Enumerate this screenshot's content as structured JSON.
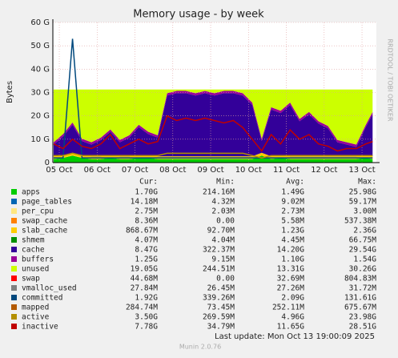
{
  "chart_data": {
    "type": "stacked-area",
    "title": "Memory usage - by week",
    "y_label": "Bytes",
    "side_note": "RRDTOOL / TOBI OETIKER",
    "footer": "Last update: Mon Oct 13 19:00:09 2025",
    "version": "Munin 2.0.76",
    "stats_header": [
      "Cur:",
      "Min:",
      "Avg:",
      "Max:"
    ],
    "grid": true,
    "ylim": [
      0,
      60
    ],
    "yticks": [
      0,
      {
        "value": 10,
        "label": "10 G"
      },
      {
        "value": 20,
        "label": "20 G"
      },
      {
        "value": 30,
        "label": "30 G"
      },
      {
        "value": 40,
        "label": "40 G"
      },
      {
        "value": 50,
        "label": "50 G"
      },
      {
        "value": 60,
        "label": "60 G"
      }
    ],
    "xlim": [
      -0.17,
      8.38
    ],
    "xticks": [
      {
        "value": 0,
        "label": "05 Oct"
      },
      {
        "value": 1,
        "label": "06 Oct"
      },
      {
        "value": 2,
        "label": "07 Oct"
      },
      {
        "value": 3,
        "label": "08 Oct"
      },
      {
        "value": 4,
        "label": "09 Oct"
      },
      {
        "value": 5,
        "label": "10 Oct"
      },
      {
        "value": 6,
        "label": "11 Oct"
      },
      {
        "value": 7,
        "label": "12 Oct"
      },
      {
        "value": 8,
        "label": "13 Oct"
      }
    ],
    "x": [
      -0.15,
      0.1,
      0.35,
      0.6,
      0.85,
      1.1,
      1.35,
      1.6,
      1.85,
      2.1,
      2.35,
      2.6,
      2.85,
      3.1,
      3.35,
      3.6,
      3.85,
      4.1,
      4.35,
      4.6,
      4.85,
      5.1,
      5.35,
      5.6,
      5.85,
      6.1,
      6.35,
      6.6,
      6.85,
      7.1,
      7.35,
      7.6,
      7.85,
      8.1,
      8.28
    ],
    "series": [
      {
        "name": "apps",
        "color": "#00cc00",
        "kind": "area",
        "stats": [
          "1.70G",
          "214.16M",
          "1.49G",
          "25.98G"
        ],
        "values": [
          1.5,
          2,
          3,
          2,
          1.5,
          1.5,
          2,
          1.5,
          1.5,
          2,
          2,
          1.5,
          1.5,
          1.5,
          1.5,
          1.5,
          1.5,
          1.5,
          1.5,
          1.5,
          1.5,
          1.5,
          3,
          1.5,
          2,
          1.5,
          1.5,
          1.5,
          1.5,
          1.5,
          1.5,
          1.5,
          1.5,
          2,
          1.5
        ]
      },
      {
        "name": "page_tables",
        "color": "#0066b3",
        "stats": [
          "14.18M",
          "4.32M",
          "9.02M",
          "59.17M"
        ]
      },
      {
        "name": "per_cpu",
        "color": "#ffe680",
        "stats": [
          "2.75M",
          "2.03M",
          "2.73M",
          "3.00M"
        ]
      },
      {
        "name": "swap_cache",
        "color": "#ff8000",
        "stats": [
          "8.36M",
          "0.00",
          "5.58M",
          "537.38M"
        ]
      },
      {
        "name": "slab_cache",
        "color": "#ffcc00",
        "kind": "area",
        "stats": [
          "868.67M",
          "92.70M",
          "1.23G",
          "2.36G"
        ],
        "values": [
          1.2,
          1.2,
          1.2,
          1.2,
          1.2,
          1.2,
          1.2,
          1.2,
          1.2,
          1.2,
          1.2,
          1.2,
          1.2,
          1.2,
          1.2,
          1.2,
          1.2,
          1.2,
          1.2,
          1.2,
          1.2,
          1.2,
          1.2,
          1.2,
          1.2,
          1.2,
          1.2,
          1.2,
          1.2,
          1.2,
          1.2,
          1.2,
          1.2,
          1.2,
          1.2
        ]
      },
      {
        "name": "shmem",
        "color": "#008f00",
        "stats": [
          "4.07M",
          "4.04M",
          "4.45M",
          "66.75M"
        ]
      },
      {
        "name": "cache",
        "color": "#330099",
        "kind": "area",
        "stats": [
          "8.47G",
          "322.37M",
          "14.20G",
          "29.54G"
        ],
        "values": [
          5,
          8,
          12,
          6,
          5,
          7,
          10,
          6,
          8,
          12,
          9,
          8,
          26,
          27,
          27,
          26,
          27,
          26,
          27,
          27,
          26,
          22,
          5,
          20,
          18,
          22,
          15,
          18,
          14,
          12,
          6,
          5,
          4,
          12,
          18
        ]
      },
      {
        "name": "buffers",
        "color": "#990099",
        "kind": "area",
        "stats": [
          "1.25G",
          "9.15M",
          "1.10G",
          "1.54G"
        ],
        "values": [
          1,
          1,
          1,
          1,
          1,
          1,
          1,
          1,
          1,
          1,
          1,
          1,
          1,
          1,
          1,
          1,
          1,
          1,
          1,
          1,
          1,
          1,
          1,
          1,
          1,
          1,
          1,
          1,
          1,
          1,
          1,
          1,
          1,
          1,
          1
        ]
      },
      {
        "name": "unused",
        "color": "#ccff00",
        "kind": "area",
        "stats": [
          "19.05G",
          "244.51M",
          "13.31G",
          "30.26G"
        ],
        "values": [
          22.6,
          19.1,
          14.1,
          21.1,
          22.6,
          20.6,
          17.1,
          21.6,
          19.6,
          15.1,
          18.1,
          19.6,
          1.6,
          0.6,
          0.6,
          1.6,
          0.6,
          1.6,
          0.6,
          0.6,
          1.6,
          5.6,
          21.1,
          7.6,
          9.1,
          5.6,
          12.6,
          9.6,
          13.6,
          15.6,
          21.6,
          22.6,
          23.6,
          15.1,
          9.6
        ]
      },
      {
        "name": "swap",
        "color": "#ff0000",
        "stats": [
          "44.68M",
          "0.00",
          "32.69M",
          "804.83M"
        ]
      },
      {
        "name": "vmalloc_used",
        "color": "#808080",
        "stats": [
          "27.84M",
          "26.45M",
          "27.26M",
          "31.72M"
        ]
      },
      {
        "name": "committed",
        "color": "#00487d",
        "kind": "line",
        "stats": [
          "1.92G",
          "339.26M",
          "2.09G",
          "131.61G"
        ],
        "values": [
          2,
          2,
          53,
          2,
          2,
          2,
          2,
          2,
          2,
          2,
          2,
          2,
          2,
          2,
          2,
          2,
          2,
          2,
          2,
          2,
          2,
          2,
          2,
          2,
          2,
          2,
          2,
          2,
          2,
          2,
          2,
          2,
          2,
          2,
          2
        ]
      },
      {
        "name": "mapped",
        "color": "#b35a00",
        "stats": [
          "284.74M",
          "73.45M",
          "252.11M",
          "675.67M"
        ]
      },
      {
        "name": "active",
        "color": "#b38f00",
        "kind": "line",
        "stats": [
          "3.50G",
          "269.59M",
          "4.96G",
          "23.98G"
        ],
        "values": [
          3,
          3,
          4,
          3,
          3,
          3,
          3,
          3,
          3,
          3,
          3,
          3,
          4,
          4,
          4,
          4,
          4,
          4,
          4,
          4,
          4,
          3,
          2,
          3,
          3,
          3,
          3,
          3,
          3,
          3,
          3,
          3,
          3,
          3,
          3
        ]
      },
      {
        "name": "inactive",
        "color": "#c00000",
        "kind": "line",
        "stats": [
          "7.78G",
          "34.79M",
          "11.65G",
          "28.51G"
        ],
        "values": [
          8,
          6,
          10,
          7,
          6,
          8,
          12,
          6,
          8,
          10,
          8,
          9,
          20,
          18,
          19,
          18,
          19,
          18,
          17,
          18,
          15,
          10,
          5,
          12,
          8,
          14,
          10,
          12,
          8,
          7,
          5,
          6,
          6,
          8,
          9
        ]
      }
    ]
  }
}
